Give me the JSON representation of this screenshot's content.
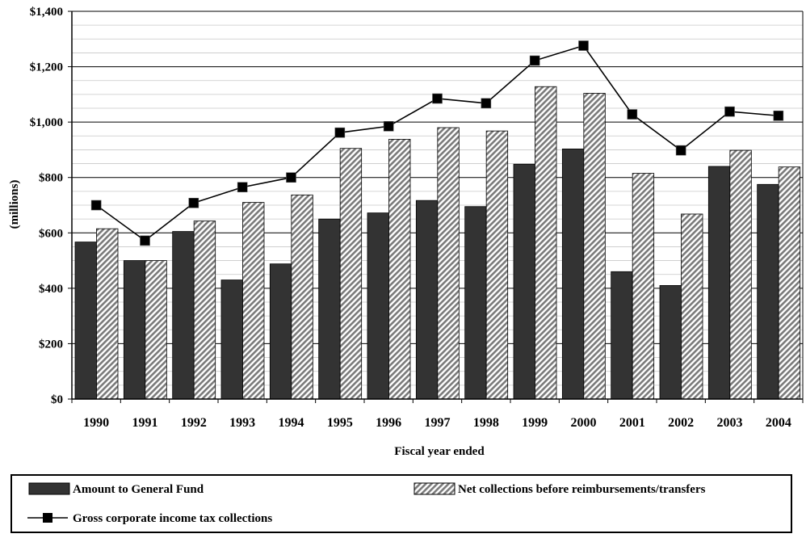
{
  "chart_data": {
    "type": "bar+line",
    "categories": [
      "1990",
      "1991",
      "1992",
      "1993",
      "1994",
      "1995",
      "1996",
      "1997",
      "1998",
      "1999",
      "2000",
      "2001",
      "2002",
      "2003",
      "2004"
    ],
    "series": [
      {
        "name": "Amount to General Fund",
        "type": "bar",
        "color": "#333333",
        "values": [
          567,
          500,
          605,
          430,
          488,
          650,
          672,
          717,
          695,
          848,
          903,
          460,
          410,
          840,
          775
        ]
      },
      {
        "name": "Net collections before reimbursements/transfers",
        "type": "bar",
        "pattern": "diagonal-hatch",
        "color": "#9a9a9a",
        "values": [
          615,
          500,
          643,
          710,
          737,
          905,
          938,
          980,
          968,
          1128,
          1104,
          815,
          668,
          898,
          838
        ]
      },
      {
        "name": "Gross corporate income tax collections",
        "type": "line",
        "marker": "square",
        "color": "#000000",
        "values": [
          700,
          572,
          708,
          765,
          800,
          962,
          985,
          1085,
          1068,
          1222,
          1276,
          1028,
          898,
          1038,
          1023
        ]
      }
    ],
    "xlabel": "Fiscal year ended",
    "ylabel": "(millions)",
    "ylim": [
      0,
      1400
    ],
    "yticks": [
      0,
      200,
      400,
      600,
      800,
      1000,
      1200,
      1400
    ],
    "ytick_labels": [
      "$0",
      "$200",
      "$400",
      "$600",
      "$800",
      "$1,000",
      "$1,200",
      "$1,400"
    ],
    "major_grid": true,
    "minor_grid_step": 50,
    "legend": {
      "placement": "bottom",
      "boxed": true
    }
  }
}
